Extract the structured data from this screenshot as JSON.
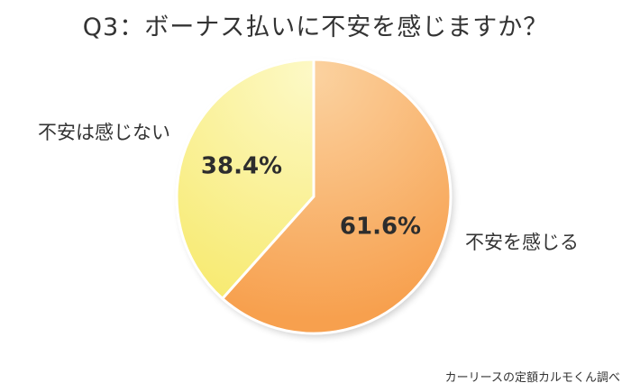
{
  "chart_data": {
    "type": "pie",
    "title": "Q3：ボーナス払いに不安を感じますか？",
    "slices": [
      {
        "label": "不安を感じる",
        "value": 61.6,
        "value_label": "61.6%",
        "color_from": "#fbd2a0",
        "color_to": "#f7a04e"
      },
      {
        "label": "不安は感じない",
        "value": 38.4,
        "value_label": "38.4%",
        "color_from": "#fdf9c6",
        "color_to": "#f7ea70"
      }
    ],
    "start_angle": "12 o'clock",
    "direction": "clockwise",
    "legend": "none (labels beside slices)"
  },
  "source_note": "カーリースの定額カルモくん調べ"
}
